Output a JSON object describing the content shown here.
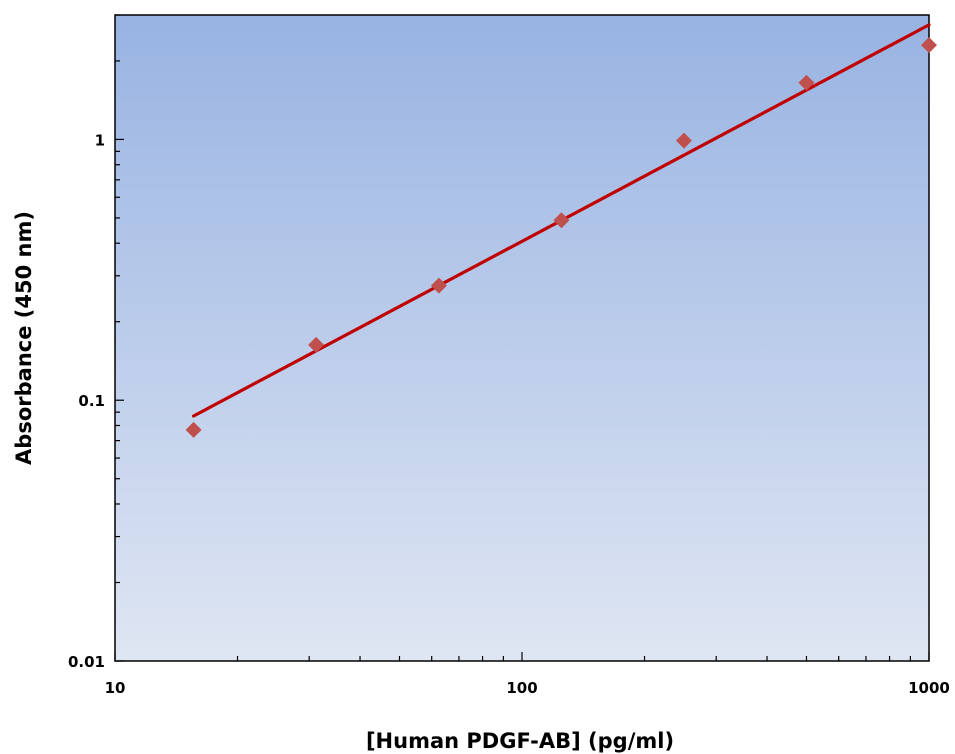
{
  "chart_data": {
    "type": "scatter",
    "xlabel": "[Human PDGF-AB] (pg/ml)",
    "ylabel": "Absorbance (450 nm)",
    "x_scale": "log",
    "y_scale": "log",
    "xlim": [
      10,
      1000
    ],
    "ylim": [
      0.01,
      3
    ],
    "x_ticks": [
      {
        "value": 10,
        "label": "10"
      },
      {
        "value": 100,
        "label": "100"
      },
      {
        "value": 1000,
        "label": "1000"
      }
    ],
    "y_ticks": [
      {
        "value": 0.01,
        "label": "0.01"
      },
      {
        "value": 0.1,
        "label": "0.1"
      },
      {
        "value": 1,
        "label": "1"
      }
    ],
    "series": [
      {
        "type": "scatter",
        "marker": "diamond",
        "color": "#c0504d",
        "points": [
          {
            "x": 15.6,
            "y": 0.077
          },
          {
            "x": 31.2,
            "y": 0.163
          },
          {
            "x": 62.5,
            "y": 0.275
          },
          {
            "x": 125,
            "y": 0.49
          },
          {
            "x": 250,
            "y": 0.99
          },
          {
            "x": 500,
            "y": 1.65
          },
          {
            "x": 1000,
            "y": 2.3
          }
        ]
      },
      {
        "type": "line",
        "color": "#c00000",
        "fit": "power",
        "points": [
          {
            "x": 15.6,
            "y": 0.087
          },
          {
            "x": 1000,
            "y": 2.75
          }
        ]
      }
    ],
    "background_gradient": [
      "#98b3e2",
      "#dfe6f3"
    ],
    "grid": false,
    "legend": "none"
  }
}
